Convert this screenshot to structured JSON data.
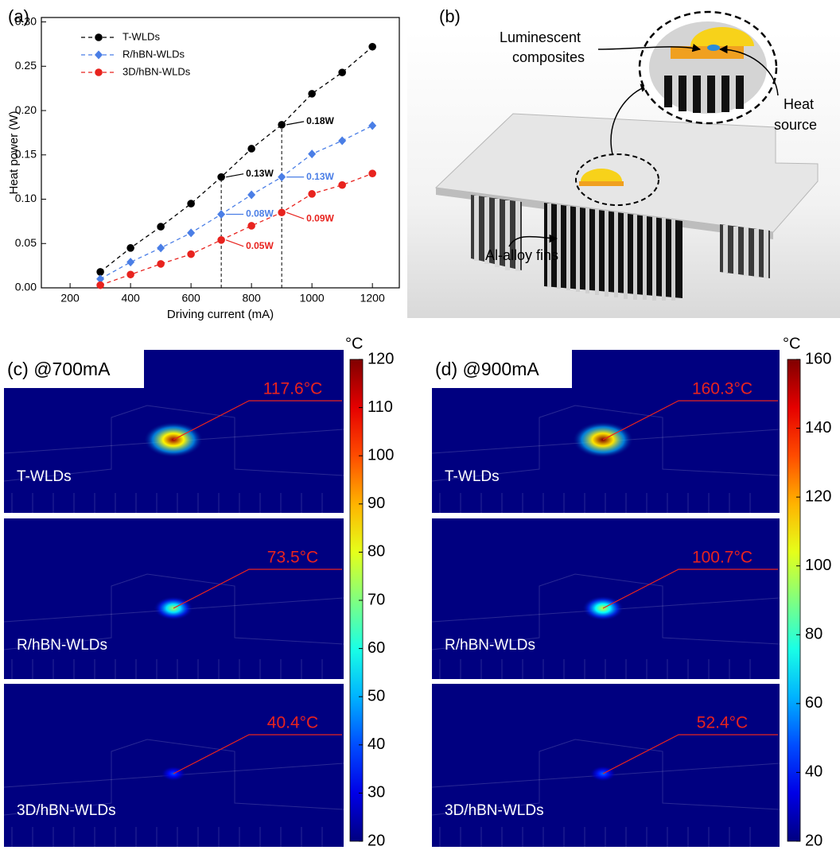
{
  "chart_data": [
    {
      "type": "line",
      "panel_label": "(a)",
      "xlabel": "Driving current (mA)",
      "ylabel": "Heat power (W)",
      "x": [
        300,
        400,
        500,
        600,
        700,
        800,
        900,
        1000,
        1100,
        1200
      ],
      "series": [
        {
          "name": "T-WLDs",
          "color": "#000000",
          "marker": "circle",
          "values": [
            0.018,
            0.045,
            0.069,
            0.095,
            0.125,
            0.157,
            0.184,
            0.219,
            0.243,
            0.272
          ]
        },
        {
          "name": "R/hBN-WLDs",
          "color": "#4a7ee6",
          "marker": "diamond",
          "values": [
            0.01,
            0.029,
            0.045,
            0.062,
            0.083,
            0.105,
            0.125,
            0.151,
            0.166,
            0.183
          ]
        },
        {
          "name": "3D/hBN-WLDs",
          "color": "#e8231e",
          "marker": "circle",
          "values": [
            0.003,
            0.015,
            0.027,
            0.038,
            0.054,
            0.07,
            0.085,
            0.106,
            0.116,
            0.129
          ]
        }
      ],
      "xlim": [
        105,
        1289
      ],
      "ylim": [
        0,
        0.305
      ],
      "xticks": [
        200,
        400,
        600,
        800,
        1000,
        1200
      ],
      "yticks": [
        {
          "value": 0,
          "label": "0.00"
        },
        {
          "value": 0.05,
          "label": "0.05"
        },
        {
          "value": 0.1,
          "label": "0.10"
        },
        {
          "value": 0.15,
          "label": "0.15"
        },
        {
          "value": 0.2,
          "label": "0.20"
        },
        {
          "value": 0.25,
          "label": "0.25"
        },
        {
          "value": 0.3,
          "label": "0.30"
        }
      ],
      "line_style": "dashed",
      "legend": "upper left",
      "reference_lines": [
        {
          "x": 700,
          "labels": [
            "0.13W",
            "0.08W",
            "0.05W"
          ]
        },
        {
          "x": 900,
          "labels": [
            "0.18W",
            "0.13W",
            "0.09W"
          ]
        }
      ]
    },
    {
      "type": "heatmap",
      "panel_label": "(c) @700mA",
      "colorbar_label": "°C",
      "clim": [
        20,
        120
      ],
      "cticks": [
        20,
        30,
        40,
        50,
        60,
        70,
        80,
        90,
        100,
        110,
        120
      ],
      "categories": [
        "T-WLDs",
        "R/hBN-WLDs",
        "3D/hBN-WLDs"
      ],
      "values": [
        117.6,
        73.5,
        40.4
      ],
      "value_labels": [
        "117.6°C",
        "73.5°C",
        "40.4°C"
      ]
    },
    {
      "type": "heatmap",
      "panel_label": "(d) @900mA",
      "colorbar_label": "°C",
      "clim": [
        20,
        160
      ],
      "cticks": [
        20,
        40,
        60,
        80,
        100,
        120,
        140,
        160
      ],
      "categories": [
        "T-WLDs",
        "R/hBN-WLDs",
        "3D/hBN-WLDs"
      ],
      "values": [
        160.3,
        100.7,
        52.4
      ],
      "value_labels": [
        "160.3°C",
        "100.7°C",
        "52.4°C"
      ]
    }
  ],
  "diagram": {
    "panel_label": "(b)",
    "composites": [
      "Luminescent",
      "composites"
    ],
    "heat_source": [
      "Heat",
      "source"
    ],
    "fins": "Al-alloy fins"
  }
}
